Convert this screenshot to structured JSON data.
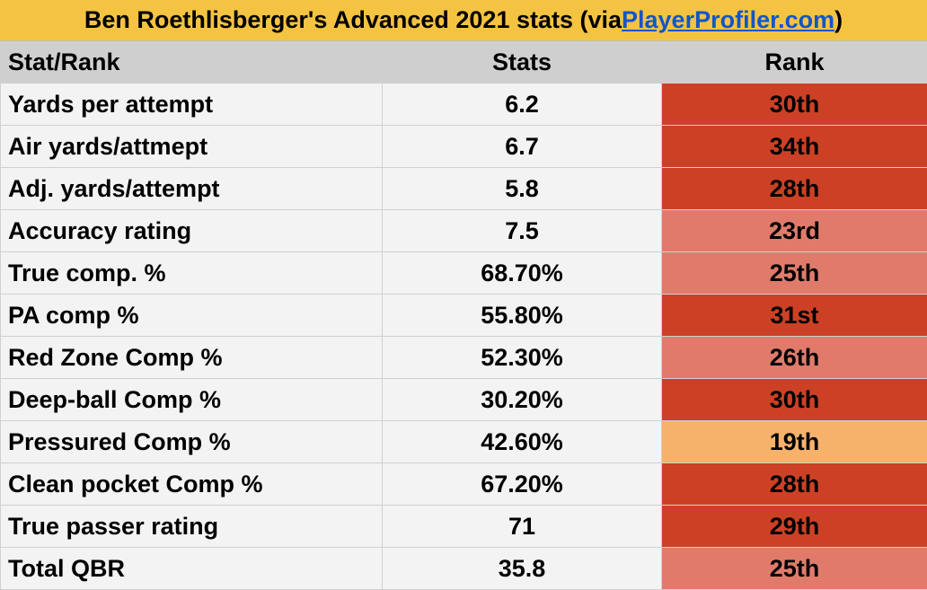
{
  "title": {
    "prefix": "Ben Roethlisberger's Advanced 2021 stats (via ",
    "link": "PlayerProfiler.com",
    "suffix": ")"
  },
  "table": {
    "headers": [
      "Stat/Rank",
      "Stats",
      "Rank"
    ],
    "rows": [
      {
        "stat": "Yards per attempt",
        "value": "6.2",
        "rank": "30th",
        "color": "#cc4125"
      },
      {
        "stat": "Air yards/attmept",
        "value": "6.7",
        "rank": "34th",
        "color": "#cc4125"
      },
      {
        "stat": "Adj. yards/attempt",
        "value": "5.8",
        "rank": "28th",
        "color": "#cc4125"
      },
      {
        "stat": "Accuracy rating",
        "value": "7.5",
        "rank": "23rd",
        "color": "#e07b6c"
      },
      {
        "stat": "True comp. %",
        "value": "68.70%",
        "rank": "25th",
        "color": "#e07b6c"
      },
      {
        "stat": "PA comp %",
        "value": "55.80%",
        "rank": "31st",
        "color": "#cc4125"
      },
      {
        "stat": "Red Zone Comp %",
        "value": "52.30%",
        "rank": "26th",
        "color": "#e07b6c"
      },
      {
        "stat": "Deep-ball Comp %",
        "value": "30.20%",
        "rank": "30th",
        "color": "#cc4125"
      },
      {
        "stat": "Pressured Comp %",
        "value": "42.60%",
        "rank": "19th",
        "color": "#f6b26b"
      },
      {
        "stat": "Clean pocket Comp %",
        "value": "67.20%",
        "rank": "28th",
        "color": "#cc4125"
      },
      {
        "stat": "True passer rating",
        "value": "71",
        "rank": "29th",
        "color": "#cc4125"
      },
      {
        "stat": "Total QBR",
        "value": "35.8",
        "rank": "25th",
        "color": "#e07b6c"
      }
    ]
  }
}
